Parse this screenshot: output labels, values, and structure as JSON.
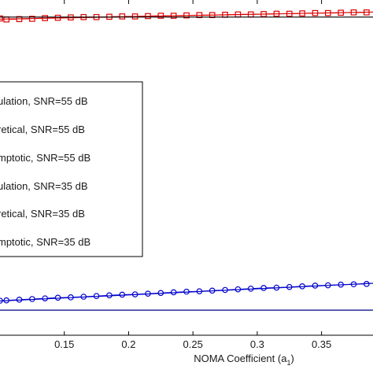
{
  "chart_data": {
    "type": "line",
    "xlabel": "NOMA Coefficient (a",
    "xlabel_sub": "1",
    "xlabel_close": ")",
    "xlim": [
      0.1,
      0.39
    ],
    "ylim": [
      0,
      1
    ],
    "x_ticks": [
      0.15,
      0.2,
      0.25,
      0.3,
      0.35
    ],
    "x_tick_labels": [
      "0.15",
      "0.2",
      "0.25",
      "0.3",
      "0.35"
    ],
    "grid": false,
    "legend_placement": "center-left",
    "series": [
      {
        "name": "ulation, SNR=55 dB",
        "color": "#dd0000",
        "marker": "square",
        "x": [
          0.1,
          0.105,
          0.115,
          0.125,
          0.135,
          0.145,
          0.155,
          0.165,
          0.175,
          0.185,
          0.195,
          0.205,
          0.215,
          0.225,
          0.235,
          0.245,
          0.255,
          0.265,
          0.275,
          0.285,
          0.295,
          0.305,
          0.315,
          0.325,
          0.335,
          0.345,
          0.355,
          0.365,
          0.375,
          0.385
        ],
        "y": [
          0.945,
          0.942,
          0.943,
          0.944,
          0.946,
          0.947,
          0.948,
          0.949,
          0.949,
          0.95,
          0.951,
          0.951,
          0.952,
          0.953,
          0.953,
          0.954,
          0.955,
          0.955,
          0.956,
          0.957,
          0.957,
          0.958,
          0.959,
          0.959,
          0.96,
          0.961,
          0.961,
          0.962,
          0.963,
          0.963
        ]
      },
      {
        "name": "retical, SNR=55 dB",
        "color": "#dd0000",
        "marker": "none",
        "x": [
          0.1,
          0.39
        ],
        "y": [
          0.943,
          0.964
        ]
      },
      {
        "name": "mptotic, SNR=55 dB",
        "color": "#000000",
        "marker": "none",
        "x": [
          0.1,
          0.39
        ],
        "y": [
          0.949,
          0.949
        ]
      },
      {
        "name": "ulation, SNR=35 dB",
        "color": "#0000cc",
        "marker": "circle",
        "x": [
          0.1,
          0.105,
          0.115,
          0.125,
          0.135,
          0.145,
          0.155,
          0.165,
          0.175,
          0.185,
          0.195,
          0.205,
          0.215,
          0.225,
          0.235,
          0.245,
          0.255,
          0.265,
          0.275,
          0.285,
          0.295,
          0.305,
          0.315,
          0.325,
          0.335,
          0.345,
          0.355,
          0.365,
          0.375,
          0.385
        ],
        "y": [
          0.103,
          0.104,
          0.106,
          0.108,
          0.11,
          0.112,
          0.113,
          0.115,
          0.117,
          0.119,
          0.121,
          0.122,
          0.124,
          0.126,
          0.128,
          0.13,
          0.131,
          0.133,
          0.135,
          0.137,
          0.139,
          0.141,
          0.142,
          0.144,
          0.146,
          0.148,
          0.149,
          0.151,
          0.152,
          0.153
        ]
      },
      {
        "name": "retical, SNR=35 dB",
        "color": "#0000cc",
        "marker": "none",
        "x": [
          0.1,
          0.39
        ],
        "y": [
          0.102,
          0.155
        ]
      },
      {
        "name": "mptotic, SNR=35 dB",
        "color": "#000080",
        "marker": "none",
        "x": [
          0.1,
          0.39
        ],
        "y": [
          0.075,
          0.075
        ]
      }
    ]
  }
}
